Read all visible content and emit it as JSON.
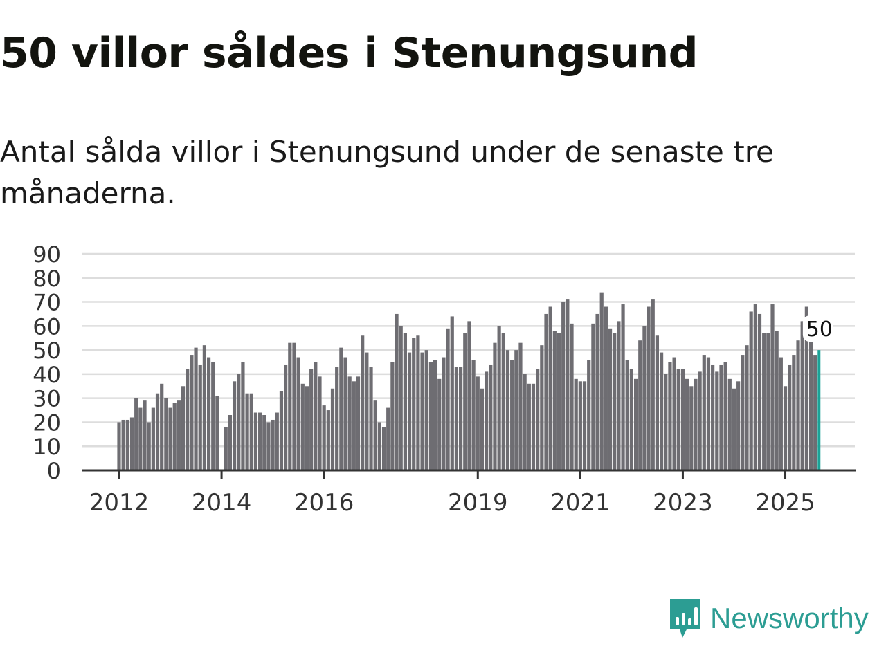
{
  "title": "50 villor såldes i Stenungsund",
  "subtitle": "Antal sålda villor i Stenungsund under de senaste tre månaderna.",
  "brand": "Newsworthy",
  "colors": {
    "bar": "#6e6d72",
    "highlight": "#1aa397",
    "grid": "#dddddd",
    "axis": "#333333",
    "brand": "#2c9d93"
  },
  "chart_data": {
    "type": "bar",
    "title": "",
    "xlabel": "",
    "ylabel": "",
    "ylim": [
      0,
      90
    ],
    "yticks": [
      0,
      10,
      20,
      30,
      40,
      50,
      60,
      70,
      80,
      90
    ],
    "xtick_labels": [
      {
        "label": "2012",
        "index": 0
      },
      {
        "label": "2014",
        "index": 24
      },
      {
        "label": "2016",
        "index": 48
      },
      {
        "label": "2019",
        "index": 84
      },
      {
        "label": "2021",
        "index": 108
      },
      {
        "label": "2023",
        "index": 132
      },
      {
        "label": "2025",
        "index": 156
      }
    ],
    "start": "2012-01",
    "frequency": "monthly",
    "values": [
      20,
      21,
      21,
      22,
      30,
      26,
      29,
      20,
      26,
      32,
      36,
      30,
      26,
      28,
      29,
      35,
      42,
      48,
      51,
      44,
      52,
      47,
      45,
      31,
      0,
      18,
      23,
      37,
      40,
      45,
      32,
      32,
      24,
      24,
      23,
      20,
      21,
      24,
      33,
      44,
      53,
      53,
      47,
      36,
      35,
      42,
      45,
      39,
      27,
      25,
      34,
      43,
      51,
      47,
      39,
      37,
      39,
      56,
      49,
      43,
      29,
      20,
      18,
      26,
      45,
      65,
      60,
      57,
      49,
      55,
      56,
      49,
      50,
      45,
      46,
      38,
      47,
      59,
      64,
      43,
      43,
      57,
      62,
      46,
      39,
      34,
      41,
      44,
      53,
      60,
      57,
      50,
      46,
      50,
      53,
      40,
      36,
      36,
      42,
      52,
      65,
      68,
      58,
      57,
      70,
      71,
      61,
      38,
      37,
      37,
      46,
      61,
      65,
      74,
      68,
      59,
      57,
      62,
      69,
      46,
      42,
      38,
      54,
      60,
      68,
      71,
      56,
      49,
      40,
      45,
      47,
      42,
      42,
      38,
      35,
      38,
      41,
      48,
      47,
      44,
      41,
      44,
      45,
      38,
      34,
      37,
      48,
      52,
      66,
      69,
      65,
      57,
      57,
      69,
      58,
      47,
      35,
      44,
      48,
      54,
      62,
      68,
      55,
      48,
      50
    ],
    "highlight_last": true,
    "annotation": "50",
    "grid": true
  }
}
